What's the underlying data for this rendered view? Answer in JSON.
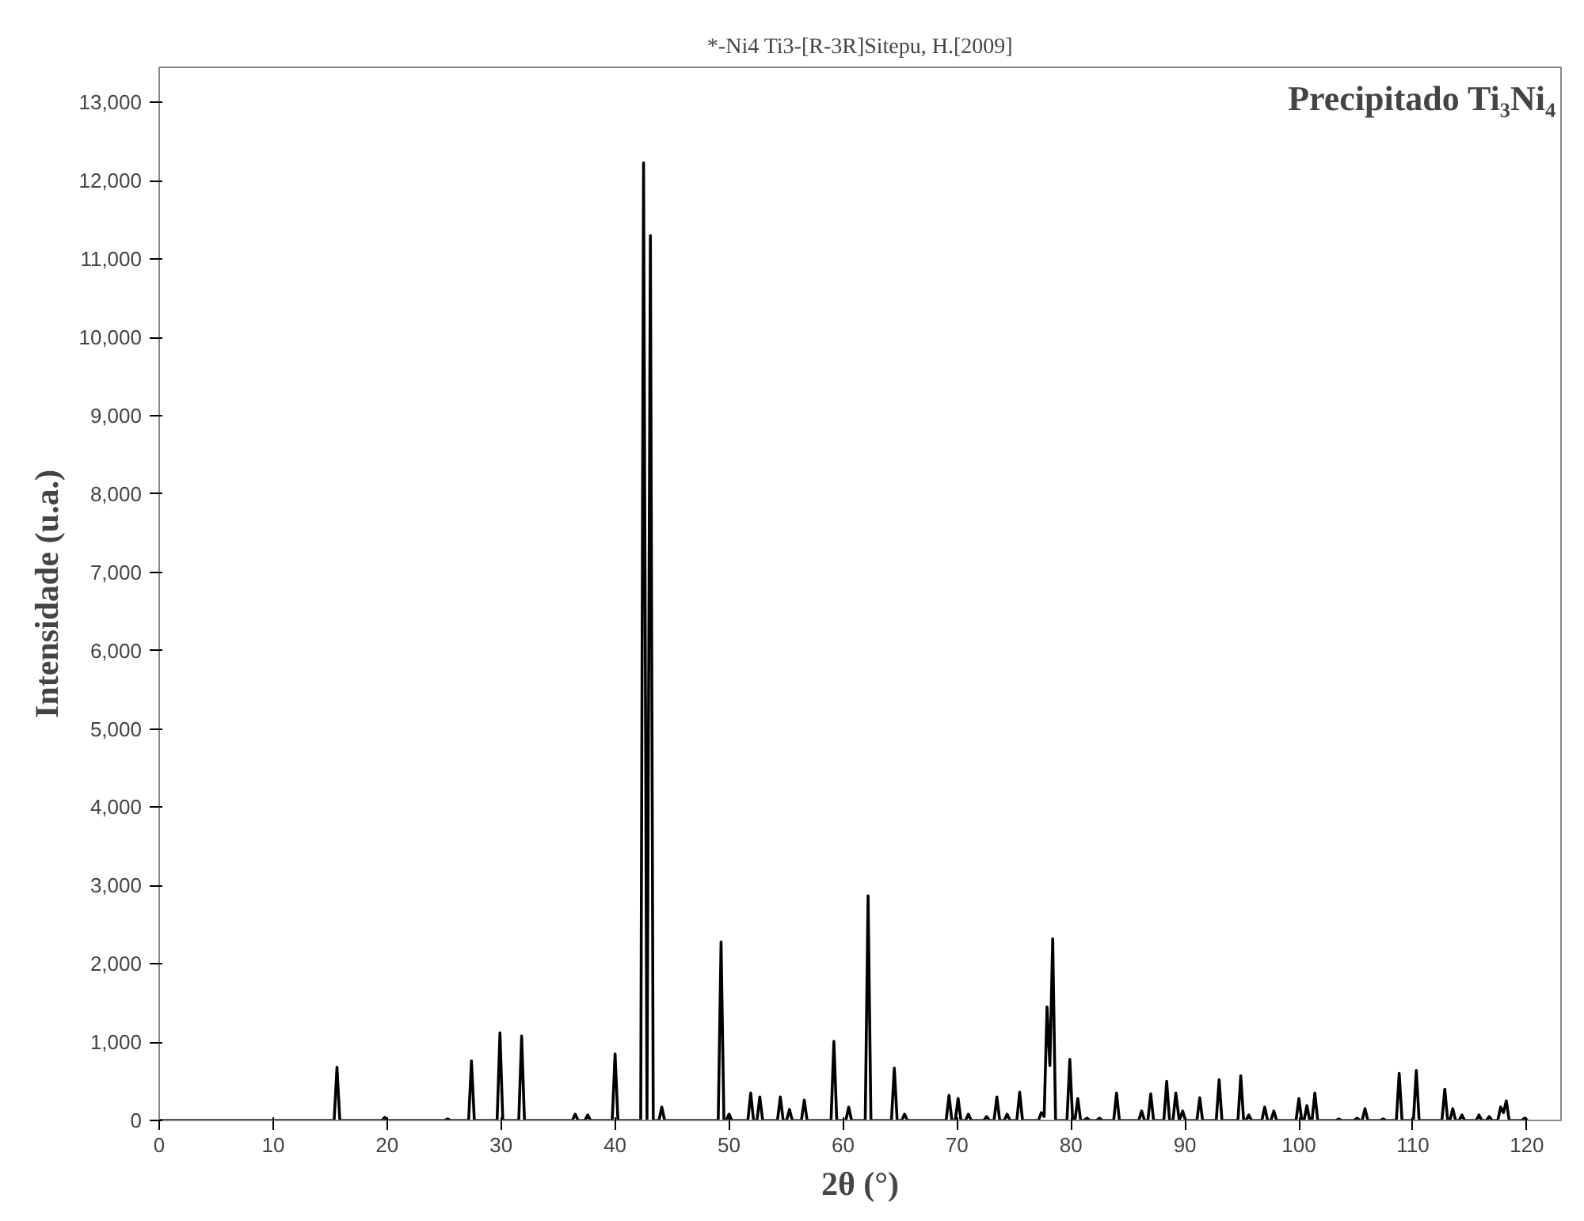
{
  "chart_data": {
    "type": "line",
    "title": "*-Ni4 Ti3-[R-3R]Sitepu, H.[2009]",
    "xlabel": "2θ (°)",
    "ylabel": "Intensidade (u.a.)",
    "annotations": [
      "Precipitado Ti₃Ni₄"
    ],
    "xlim": [
      0,
      123
    ],
    "ylim": [
      0,
      13450
    ],
    "xticks": [
      0,
      10,
      20,
      30,
      40,
      50,
      60,
      70,
      80,
      90,
      100,
      110,
      120
    ],
    "yticks": [
      0,
      {
        "value": 1000,
        "label": "1,000"
      },
      {
        "value": 2000,
        "label": "2,000"
      },
      {
        "value": 3000,
        "label": "3,000"
      },
      {
        "value": 4000,
        "label": "4,000"
      },
      {
        "value": 5000,
        "label": "5,000"
      },
      {
        "value": 6000,
        "label": "6,000"
      },
      {
        "value": 7000,
        "label": "7,000"
      },
      {
        "value": 8000,
        "label": "8,000"
      },
      {
        "value": 9000,
        "label": "9,000"
      },
      {
        "value": 10000,
        "label": "10,000"
      },
      {
        "value": 11000,
        "label": "11,000"
      },
      {
        "value": 12000,
        "label": "12,000"
      },
      {
        "value": 13000,
        "label": "13,000"
      }
    ],
    "grid": false,
    "marker": "none",
    "line_style": "solid",
    "series": [
      {
        "color": "#000000",
        "x": [
          0,
          15.35,
          15.6,
          15.85,
          19.55,
          19.8,
          20.05,
          25.05,
          25.3,
          25.55,
          27.15,
          27.4,
          27.65,
          29.65,
          29.9,
          30.15,
          31.55,
          31.8,
          32.05,
          36.25,
          36.5,
          36.75,
          37.35,
          37.6,
          37.85,
          39.75,
          40.0,
          40.25,
          42.25,
          42.5,
          42.8,
          43.1,
          43.35,
          43.85,
          44.1,
          44.35,
          49.05,
          49.3,
          49.55,
          49.75,
          50.0,
          50.25,
          51.65,
          51.9,
          52.15,
          52.45,
          52.7,
          52.95,
          54.25,
          54.5,
          54.75,
          55.05,
          55.3,
          55.55,
          56.35,
          56.6,
          56.85,
          58.95,
          59.2,
          59.45,
          60.25,
          60.5,
          60.75,
          61.95,
          62.2,
          62.45,
          64.25,
          64.5,
          64.75,
          65.15,
          65.4,
          65.65,
          69.05,
          69.3,
          69.55,
          69.85,
          70.1,
          70.35,
          70.75,
          71.0,
          71.25,
          72.35,
          72.6,
          72.85,
          73.25,
          73.5,
          73.75,
          74.15,
          74.4,
          74.65,
          75.25,
          75.5,
          75.75,
          77.15,
          77.4,
          77.65,
          77.9,
          78.15,
          78.4,
          78.65,
          79.65,
          79.9,
          80.15,
          80.35,
          80.6,
          80.85,
          81.15,
          81.4,
          81.65,
          82.25,
          82.5,
          82.75,
          83.75,
          84.0,
          84.25,
          85.95,
          86.2,
          86.45,
          86.75,
          87.0,
          87.25,
          88.15,
          88.4,
          88.65,
          88.95,
          89.2,
          89.5,
          89.8,
          90.05,
          91.05,
          91.3,
          91.55,
          92.75,
          93.0,
          93.25,
          94.65,
          94.9,
          95.15,
          95.35,
          95.6,
          95.85,
          96.75,
          97.0,
          97.25,
          97.55,
          97.8,
          98.05,
          99.75,
          100.0,
          100.25,
          100.45,
          100.7,
          100.95,
          101.15,
          101.4,
          101.65,
          103.25,
          103.5,
          103.75,
          104.85,
          105.1,
          105.35,
          105.55,
          105.8,
          106.05,
          107.15,
          107.4,
          107.65,
          108.55,
          108.8,
          109.05,
          110.05,
          110.3,
          110.55,
          112.55,
          112.8,
          113.05,
          113.25,
          113.5,
          113.75,
          114.05,
          114.3,
          114.55,
          115.55,
          115.8,
          116.05,
          116.45,
          116.7,
          116.95,
          117.45,
          117.7,
          117.95,
          118.2,
          118.45,
          119.55,
          119.8,
          120.05
        ],
        "values": [
          0,
          0,
          680,
          0,
          0,
          40,
          0,
          0,
          20,
          0,
          0,
          760,
          0,
          0,
          1120,
          0,
          0,
          1080,
          0,
          0,
          80,
          0,
          0,
          70,
          0,
          0,
          850,
          0,
          0,
          12230,
          0,
          11300,
          0,
          0,
          170,
          0,
          0,
          2280,
          0,
          0,
          80,
          0,
          0,
          350,
          0,
          0,
          300,
          0,
          0,
          300,
          0,
          0,
          140,
          0,
          0,
          260,
          0,
          0,
          1010,
          0,
          0,
          170,
          0,
          0,
          2870,
          0,
          0,
          670,
          0,
          0,
          80,
          0,
          0,
          320,
          0,
          0,
          280,
          0,
          0,
          80,
          0,
          0,
          50,
          0,
          0,
          300,
          0,
          0,
          80,
          0,
          0,
          360,
          0,
          0,
          100,
          50,
          1450,
          700,
          2320,
          0,
          0,
          780,
          0,
          0,
          280,
          0,
          0,
          30,
          0,
          0,
          30,
          0,
          0,
          350,
          0,
          0,
          120,
          0,
          0,
          340,
          0,
          0,
          500,
          0,
          0,
          350,
          0,
          120,
          0,
          0,
          290,
          0,
          0,
          520,
          0,
          0,
          570,
          0,
          0,
          70,
          0,
          0,
          170,
          0,
          0,
          120,
          0,
          0,
          280,
          0,
          0,
          190,
          0,
          0,
          350,
          0,
          0,
          20,
          0,
          0,
          30,
          0,
          0,
          150,
          0,
          0,
          20,
          0,
          0,
          600,
          0,
          0,
          640,
          0,
          0,
          400,
          0,
          0,
          150,
          0,
          0,
          70,
          0,
          0,
          70,
          0,
          0,
          50,
          0,
          0,
          170,
          100,
          250,
          0,
          0,
          30,
          0
        ]
      }
    ]
  }
}
